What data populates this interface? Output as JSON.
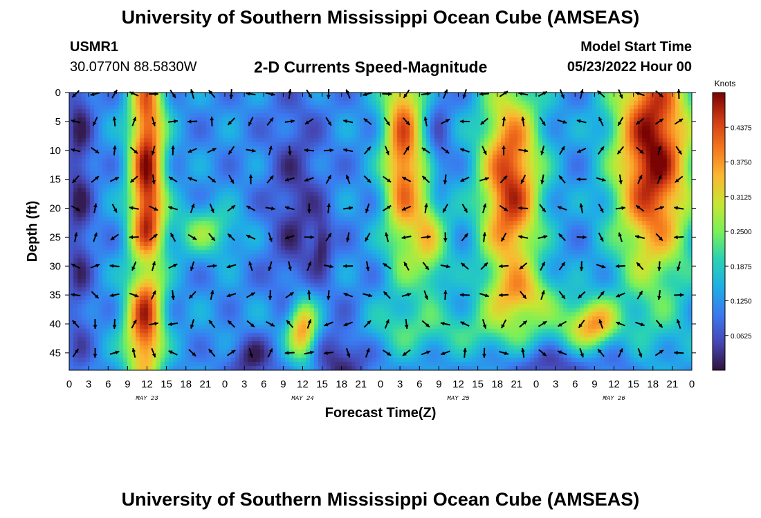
{
  "header": {
    "title": "University of Southern Mississippi Ocean Cube (AMSEAS)",
    "station_id": "USMR1",
    "station_coords": "30.0770N  88.5830W",
    "subtitle": "2-D Currents Speed-Magnitude",
    "model_start_label": "Model Start Time",
    "model_start_value": "05/23/2022 Hour 00"
  },
  "footer": {
    "title": "University of Southern Mississippi Ocean Cube (AMSEAS)"
  },
  "chart_data": {
    "type": "heatmap",
    "title": "2-D Currents Speed-Magnitude",
    "xlabel": "Forecast Time(Z)",
    "ylabel": "Depth (ft)",
    "x_range_hours": [
      0,
      96
    ],
    "y_range_ft": [
      0,
      48
    ],
    "y_inverted": true,
    "x_tick_hours": [
      0,
      3,
      6,
      9,
      12,
      15,
      18,
      21,
      24,
      27,
      30,
      33,
      36,
      39,
      42,
      45,
      48,
      51,
      54,
      57,
      60,
      63,
      66,
      69,
      72,
      75,
      78,
      81,
      84,
      87,
      90,
      93,
      96
    ],
    "x_tick_labels": [
      "0",
      "3",
      "6",
      "9",
      "12",
      "15",
      "18",
      "21",
      "0",
      "3",
      "6",
      "9",
      "12",
      "15",
      "18",
      "21",
      "0",
      "3",
      "6",
      "9",
      "12",
      "15",
      "18",
      "21",
      "0",
      "3",
      "6",
      "9",
      "12",
      "15",
      "18",
      "21",
      "0"
    ],
    "y_ticks": [
      0,
      5,
      10,
      15,
      20,
      25,
      30,
      35,
      40,
      45
    ],
    "y_tick_labels": [
      "0",
      "5",
      "10",
      "15",
      "20",
      "25",
      "30",
      "35",
      "40",
      "45"
    ],
    "date_labels": [
      {
        "hour": 12,
        "label": "MAY 23"
      },
      {
        "hour": 36,
        "label": "MAY 24"
      },
      {
        "hour": 60,
        "label": "MAY 25"
      },
      {
        "hour": 84,
        "label": "MAY 26"
      }
    ],
    "colorbar": {
      "label": "Knots",
      "range": [
        0,
        0.5
      ],
      "ticks": [
        0.0625,
        0.125,
        0.1875,
        0.25,
        0.3125,
        0.375,
        0.4375
      ],
      "tick_labels": [
        "0.0625",
        "0.1250",
        "0.1875",
        "0.2500",
        "0.3125",
        "0.3750",
        "0.4375"
      ]
    },
    "vector_rows_ft": [
      0,
      5,
      10,
      15,
      20,
      25,
      30,
      35,
      40,
      45
    ],
    "vector_step_hours": 3,
    "speed_field_description_features": [
      {
        "name": "band-may23-morning",
        "hour": 12,
        "depth": 15,
        "speed": 0.45
      },
      {
        "name": "band-may24-deep",
        "hour": 36,
        "depth": 41,
        "speed": 0.36
      },
      {
        "name": "band-may25-early",
        "hour": 51,
        "depth": 10,
        "speed": 0.38
      },
      {
        "name": "band-may25-evening",
        "hour": 68,
        "depth": 15,
        "speed": 0.44
      },
      {
        "name": "band-may26-evening",
        "hour": 90,
        "depth": 10,
        "speed": 0.5
      },
      {
        "name": "core-may26-deep",
        "hour": 81,
        "depth": 40,
        "speed": 0.31
      }
    ]
  }
}
